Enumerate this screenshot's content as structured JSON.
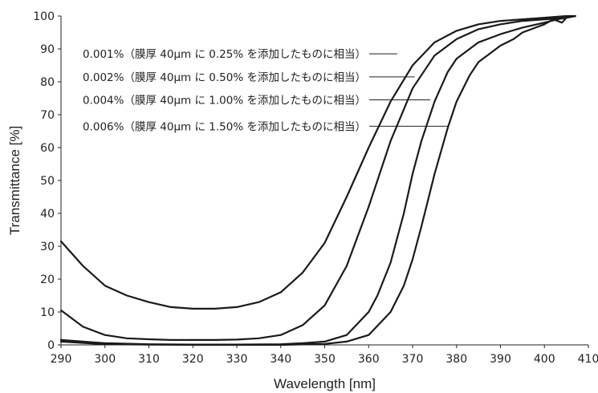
{
  "chart_data": {
    "type": "line",
    "xlabel": "Wavelength [nm]",
    "ylabel": "Transmittance [%]",
    "xlim": [
      290,
      410
    ],
    "ylim": [
      0,
      100
    ],
    "xticks": [
      290,
      300,
      310,
      320,
      330,
      340,
      350,
      360,
      370,
      380,
      390,
      400,
      410
    ],
    "yticks": [
      0,
      10,
      20,
      30,
      40,
      50,
      60,
      70,
      80,
      90,
      100
    ],
    "grid": false,
    "line_color": "#1a1a1a",
    "series": [
      {
        "name": "0.001%（膜厚 40μm に 0.25% を添加したものに相当）",
        "x": [
          290,
          295,
          300,
          305,
          310,
          315,
          320,
          325,
          330,
          335,
          340,
          345,
          350,
          355,
          360,
          365,
          370,
          375,
          380,
          385,
          390,
          395,
          400,
          405,
          407
        ],
        "y": [
          31.5,
          24,
          18,
          15,
          13,
          11.5,
          11,
          11,
          11.5,
          13,
          16,
          22,
          31,
          45,
          60,
          74,
          85,
          92,
          95.5,
          97.5,
          98.5,
          99,
          99.5,
          100,
          100
        ]
      },
      {
        "name": "0.002%（膜厚 40μm に 0.50% を添加したものに相当）",
        "x": [
          290,
          295,
          300,
          305,
          310,
          315,
          320,
          325,
          330,
          335,
          340,
          345,
          350,
          355,
          360,
          365,
          370,
          375,
          380,
          385,
          390,
          395,
          400,
          405,
          407
        ],
        "y": [
          10.5,
          5.5,
          3,
          2,
          1.7,
          1.5,
          1.5,
          1.5,
          1.6,
          2,
          3,
          6,
          12,
          24,
          42,
          62,
          78,
          88,
          93,
          96,
          97.5,
          98.5,
          99,
          99.5,
          100
        ]
      },
      {
        "name": "0.004%（膜厚 40μm に 1.00% を添加したものに相当）",
        "x": [
          290,
          300,
          310,
          320,
          330,
          340,
          345,
          350,
          355,
          360,
          362,
          365,
          368,
          370,
          372,
          375,
          378,
          380,
          385,
          390,
          395,
          400,
          403,
          405,
          407
        ],
        "y": [
          1.5,
          0.5,
          0.2,
          0.1,
          0.1,
          0.2,
          0.5,
          1,
          3,
          10,
          15,
          25,
          40,
          52,
          62,
          74,
          83,
          87,
          92,
          94.5,
          96.5,
          98,
          99,
          99.5,
          100
        ]
      },
      {
        "name": "0.006%（膜厚 40μm に 1.50% を添加したものに相当）",
        "x": [
          290,
          300,
          310,
          320,
          330,
          340,
          350,
          355,
          360,
          365,
          368,
          370,
          372,
          375,
          378,
          380,
          383,
          385,
          388,
          390,
          393,
          395,
          398,
          400,
          402,
          404,
          405,
          407
        ],
        "y": [
          1,
          0.2,
          0.1,
          0,
          0,
          0,
          0.3,
          1,
          3,
          10,
          18,
          26,
          36,
          52,
          66,
          74,
          82,
          86,
          89,
          91,
          93,
          95,
          96.5,
          97.5,
          99,
          98,
          99.5,
          100
        ]
      }
    ],
    "annotations": [
      {
        "text": "0.001%（膜厚 40μm に 0.25% を添加したものに相当）",
        "y": 88.5,
        "target_x": 366.5
      },
      {
        "text": "0.002%（膜厚 40μm に 0.50% を添加したものに相当）",
        "y": 81.5,
        "target_x": 370.5
      },
      {
        "text": "0.004%（膜厚 40μm に 1.00% を添加したものに相当）",
        "y": 74.5,
        "target_x": 374
      },
      {
        "text": "0.006%（膜厚 40μm に 1.50% を添加したものに相当）",
        "y": 66.5,
        "target_x": 378
      }
    ]
  }
}
